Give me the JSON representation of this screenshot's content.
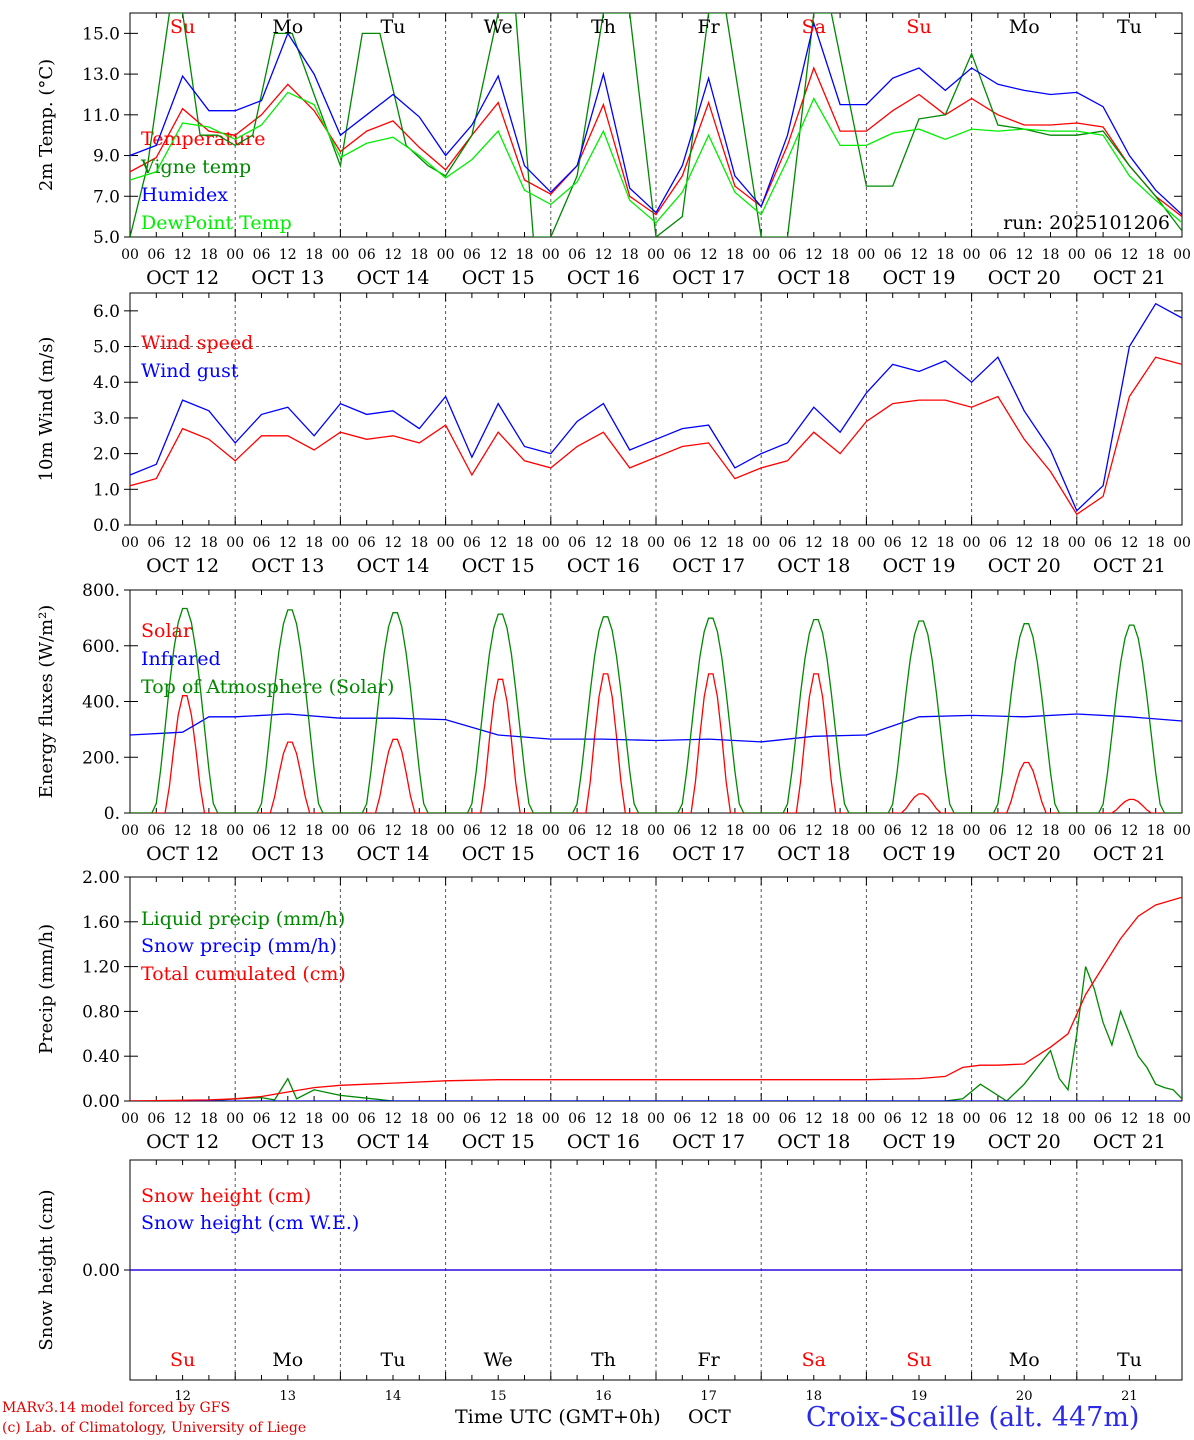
{
  "colors": {
    "red": "#ff0000",
    "green": "#008800",
    "blue": "#0000ff",
    "lightgreen": "#00ee00",
    "weekend": "#ff0000",
    "weekday": "#000000"
  },
  "days": {
    "abbr": [
      "Su",
      "Mo",
      "Tu",
      "We",
      "Th",
      "Fr",
      "Sa",
      "Su",
      "Mo",
      "Tu"
    ],
    "weekend": [
      true,
      false,
      false,
      false,
      false,
      false,
      true,
      true,
      false,
      false
    ],
    "dates": [
      "OCT 12",
      "OCT 13",
      "OCT 14",
      "OCT 15",
      "OCT 16",
      "OCT 17",
      "OCT 18",
      "OCT 19",
      "OCT 20",
      "OCT 21"
    ],
    "day_numbers": [
      "12",
      "13",
      "14",
      "15",
      "16",
      "17",
      "18",
      "19",
      "20",
      "21"
    ],
    "hour_ticks": [
      "00",
      "06",
      "12",
      "18"
    ],
    "end_tick": "00"
  },
  "run_label": "run: 2025101206",
  "footer": {
    "model_line1": "MARv3.14 model forced by GFS",
    "model_line2": "(c) Lab. of Climatology, University of Liege",
    "time_axis": "Time UTC (GMT+0h)",
    "month": "OCT",
    "station": "Croix-Scaille (alt. 447m)"
  },
  "chart_data": [
    {
      "type": "line",
      "id": "temperature",
      "ylabel": "2m Temp. (°C)",
      "ylim": [
        5.0,
        16.0
      ],
      "yticks": [
        "5.0",
        "7.0",
        "9.0",
        "11.0",
        "13.0",
        "15.0"
      ],
      "ytick_values": [
        5,
        7,
        9,
        11,
        13,
        15
      ],
      "x_unit": "hours since OCT 12 00 UTC",
      "series": [
        {
          "name": "Temperature",
          "color": "red",
          "x": [
            0,
            6,
            12,
            18,
            24,
            30,
            36,
            42,
            48,
            54,
            60,
            66,
            72,
            78,
            84,
            90,
            96,
            102,
            108,
            114,
            120,
            126,
            132,
            138,
            144,
            150,
            156,
            162,
            168,
            174,
            180,
            186,
            192,
            198,
            204,
            210,
            216,
            222,
            228,
            234,
            240
          ],
          "values": [
            8.2,
            8.9,
            11.3,
            10.2,
            10.0,
            11.0,
            12.5,
            11.2,
            9.2,
            10.2,
            10.7,
            9.4,
            8.3,
            10.0,
            11.6,
            7.8,
            7.1,
            8.5,
            11.5,
            7.0,
            6.1,
            8.0,
            11.6,
            7.5,
            6.5,
            9.5,
            13.3,
            10.2,
            10.2,
            11.2,
            12.0,
            11.0,
            11.8,
            11.0,
            10.5,
            10.5,
            10.6,
            10.4,
            8.5,
            7.0,
            6.0
          ]
        },
        {
          "name": "Vigne temp",
          "color": "green",
          "x": [
            0,
            4,
            9,
            12,
            16,
            20,
            24,
            28,
            33,
            37,
            42,
            48,
            53,
            57,
            63,
            68,
            72,
            78,
            84,
            88,
            92,
            96,
            102,
            108,
            114,
            120,
            126,
            132,
            136,
            144,
            150,
            156,
            160,
            168,
            174,
            180,
            186,
            192,
            198,
            204,
            210,
            216,
            222,
            228,
            234,
            240
          ],
          "values": [
            5.0,
            8.5,
            16.0,
            16.0,
            10.0,
            10.0,
            9.5,
            10.0,
            15.0,
            15.0,
            12.0,
            8.5,
            15.0,
            15.0,
            9.5,
            8.5,
            8.0,
            10.0,
            16.0,
            16.0,
            5.0,
            5.0,
            8.0,
            16.0,
            16.0,
            5.0,
            6.0,
            16.0,
            16.0,
            5.0,
            5.0,
            16.0,
            16.0,
            7.5,
            7.5,
            10.8,
            11.0,
            14.0,
            10.5,
            10.3,
            10.0,
            10.0,
            10.2,
            8.5,
            7.0,
            5.3
          ]
        },
        {
          "name": "Humidex",
          "color": "blue",
          "x": [
            0,
            6,
            12,
            18,
            24,
            30,
            36,
            42,
            48,
            54,
            60,
            66,
            72,
            78,
            84,
            90,
            96,
            102,
            108,
            114,
            120,
            126,
            132,
            138,
            144,
            150,
            156,
            162,
            168,
            174,
            180,
            186,
            192,
            198,
            204,
            210,
            216,
            222,
            228,
            234,
            240
          ],
          "values": [
            9.0,
            9.5,
            12.9,
            11.2,
            11.2,
            11.7,
            15.0,
            13.0,
            10.0,
            11.0,
            12.0,
            10.9,
            9.0,
            10.5,
            12.9,
            8.5,
            7.2,
            8.5,
            13.0,
            7.4,
            6.2,
            8.5,
            12.8,
            8.0,
            6.5,
            10.0,
            15.5,
            11.5,
            11.5,
            12.8,
            13.3,
            12.2,
            13.3,
            12.5,
            12.2,
            12.0,
            12.1,
            11.4,
            9.0,
            7.3,
            6.1
          ]
        },
        {
          "name": "DewPoint Temp",
          "color": "lightgreen",
          "x": [
            0,
            6,
            12,
            18,
            24,
            30,
            36,
            42,
            48,
            54,
            60,
            66,
            72,
            78,
            84,
            90,
            96,
            102,
            108,
            114,
            120,
            126,
            132,
            138,
            144,
            150,
            156,
            162,
            168,
            174,
            180,
            186,
            192,
            198,
            204,
            210,
            216,
            222,
            228,
            234,
            240
          ],
          "values": [
            7.8,
            8.2,
            10.6,
            10.4,
            9.8,
            10.5,
            12.1,
            11.5,
            8.9,
            9.6,
            9.9,
            9.0,
            7.9,
            8.8,
            10.2,
            7.3,
            6.6,
            7.7,
            10.2,
            6.8,
            5.7,
            7.2,
            10.0,
            7.2,
            6.1,
            8.8,
            11.8,
            9.5,
            9.5,
            10.1,
            10.3,
            9.8,
            10.3,
            10.2,
            10.3,
            10.2,
            10.2,
            10.0,
            8.0,
            6.8,
            5.7
          ]
        }
      ]
    },
    {
      "type": "line",
      "id": "wind",
      "ylabel": "10m Wind (m/s)",
      "ylim": [
        0.0,
        6.5
      ],
      "yticks": [
        "0.0",
        "1.0",
        "2.0",
        "3.0",
        "4.0",
        "5.0",
        "6.0"
      ],
      "ytick_values": [
        0,
        1,
        2,
        3,
        4,
        5,
        6
      ],
      "ref_line": 5.0,
      "series": [
        {
          "name": "Wind speed",
          "color": "red",
          "x": [
            0,
            6,
            12,
            18,
            24,
            30,
            36,
            42,
            48,
            54,
            60,
            66,
            72,
            78,
            84,
            90,
            96,
            102,
            108,
            114,
            120,
            126,
            132,
            138,
            144,
            150,
            156,
            162,
            168,
            174,
            180,
            186,
            192,
            198,
            204,
            210,
            216,
            222,
            228,
            234,
            240
          ],
          "values": [
            1.1,
            1.3,
            2.7,
            2.4,
            1.8,
            2.5,
            2.5,
            2.1,
            2.6,
            2.4,
            2.5,
            2.3,
            2.8,
            1.4,
            2.6,
            1.8,
            1.6,
            2.2,
            2.6,
            1.6,
            1.9,
            2.2,
            2.3,
            1.3,
            1.6,
            1.8,
            2.6,
            2.0,
            2.9,
            3.4,
            3.5,
            3.5,
            3.3,
            3.6,
            2.4,
            1.5,
            0.3,
            0.8,
            3.6,
            4.7,
            4.5
          ]
        },
        {
          "name": "Wind gust",
          "color": "blue",
          "x": [
            0,
            6,
            12,
            18,
            24,
            30,
            36,
            42,
            48,
            54,
            60,
            66,
            72,
            78,
            84,
            90,
            96,
            102,
            108,
            114,
            120,
            126,
            132,
            138,
            144,
            150,
            156,
            162,
            168,
            174,
            180,
            186,
            192,
            198,
            204,
            210,
            216,
            222,
            228,
            234,
            240
          ],
          "values": [
            1.4,
            1.7,
            3.5,
            3.2,
            2.3,
            3.1,
            3.3,
            2.5,
            3.4,
            3.1,
            3.2,
            2.7,
            3.6,
            1.9,
            3.4,
            2.2,
            2.0,
            2.9,
            3.4,
            2.1,
            2.4,
            2.7,
            2.8,
            1.6,
            2.0,
            2.3,
            3.3,
            2.6,
            3.7,
            4.5,
            4.3,
            4.6,
            4.0,
            4.7,
            3.2,
            2.1,
            0.4,
            1.1,
            5.0,
            6.2,
            5.8
          ]
        }
      ]
    },
    {
      "type": "line",
      "id": "energy",
      "ylabel": "Energy fluxes (W/m²)",
      "ylim": [
        0,
        800
      ],
      "yticks": [
        "0.",
        "200.",
        "400.",
        "600.",
        "800."
      ],
      "ytick_values": [
        0,
        200,
        400,
        600,
        800
      ],
      "series": [
        {
          "name": "Solar",
          "color": "red",
          "daily_peaks": [
            430,
            260,
            270,
            490,
            510,
            510,
            510,
            70,
            185,
            50
          ]
        },
        {
          "name": "Infrared",
          "color": "blue",
          "x": [
            0,
            12,
            18,
            24,
            36,
            48,
            60,
            72,
            84,
            96,
            108,
            120,
            132,
            144,
            156,
            168,
            180,
            192,
            204,
            216,
            228,
            240
          ],
          "values": [
            280,
            290,
            345,
            345,
            355,
            340,
            340,
            335,
            280,
            265,
            265,
            260,
            265,
            255,
            275,
            280,
            345,
            350,
            345,
            355,
            345,
            330
          ]
        },
        {
          "name": "Top of Atmosphere (Solar)",
          "color": "green",
          "daily_peaks": [
            740,
            735,
            725,
            720,
            710,
            705,
            700,
            695,
            685,
            680
          ]
        }
      ]
    },
    {
      "type": "line",
      "id": "precip",
      "ylabel": "Precip (mm/h)",
      "ylim": [
        0.0,
        2.0
      ],
      "yticks": [
        "0.00",
        "0.40",
        "0.80",
        "1.20",
        "1.60",
        "2.00"
      ],
      "ytick_values": [
        0,
        0.4,
        0.8,
        1.2,
        1.6,
        2.0
      ],
      "series": [
        {
          "name": "Liquid precip (mm/h)",
          "color": "green",
          "x": [
            0,
            18,
            24,
            30,
            33,
            36,
            38,
            42,
            48,
            60,
            72,
            120,
            186,
            190,
            194,
            200,
            204,
            208,
            210,
            212,
            214,
            216,
            218,
            220,
            222,
            224,
            226,
            228,
            230,
            232,
            234,
            236,
            238,
            240
          ],
          "values": [
            0,
            0,
            0.02,
            0.03,
            0.01,
            0.2,
            0.02,
            0.1,
            0.05,
            0,
            0,
            0,
            0,
            0.02,
            0.15,
            0.0,
            0.15,
            0.35,
            0.45,
            0.2,
            0.1,
            0.6,
            1.2,
            1.0,
            0.7,
            0.5,
            0.8,
            0.6,
            0.4,
            0.3,
            0.15,
            0.12,
            0.1,
            0.02
          ]
        },
        {
          "name": "Snow precip (mm/h)",
          "color": "blue",
          "x": [
            0,
            240
          ],
          "values": [
            0,
            0
          ]
        },
        {
          "name": "Total cumulated (cm)",
          "color": "red",
          "x": [
            0,
            18,
            24,
            30,
            36,
            42,
            48,
            60,
            72,
            84,
            96,
            120,
            144,
            168,
            180,
            186,
            190,
            194,
            198,
            204,
            210,
            214,
            218,
            222,
            226,
            230,
            234,
            240
          ],
          "values": [
            0,
            0.01,
            0.02,
            0.04,
            0.08,
            0.12,
            0.14,
            0.16,
            0.18,
            0.19,
            0.19,
            0.19,
            0.19,
            0.19,
            0.2,
            0.22,
            0.3,
            0.32,
            0.32,
            0.33,
            0.48,
            0.6,
            0.95,
            1.2,
            1.45,
            1.65,
            1.75,
            1.82
          ]
        }
      ]
    },
    {
      "type": "line",
      "id": "snow",
      "ylabel": "Snow height (cm)",
      "ylim": [
        -1,
        1
      ],
      "yticks": [
        "0.00"
      ],
      "ytick_values": [
        0
      ],
      "series": [
        {
          "name": "Snow height (cm)",
          "color": "red",
          "x": [
            0,
            240
          ],
          "values": [
            0,
            0
          ]
        },
        {
          "name": "Snow height (cm W.E.)",
          "color": "blue",
          "x": [
            0,
            240
          ],
          "values": [
            0,
            0
          ]
        }
      ]
    }
  ]
}
